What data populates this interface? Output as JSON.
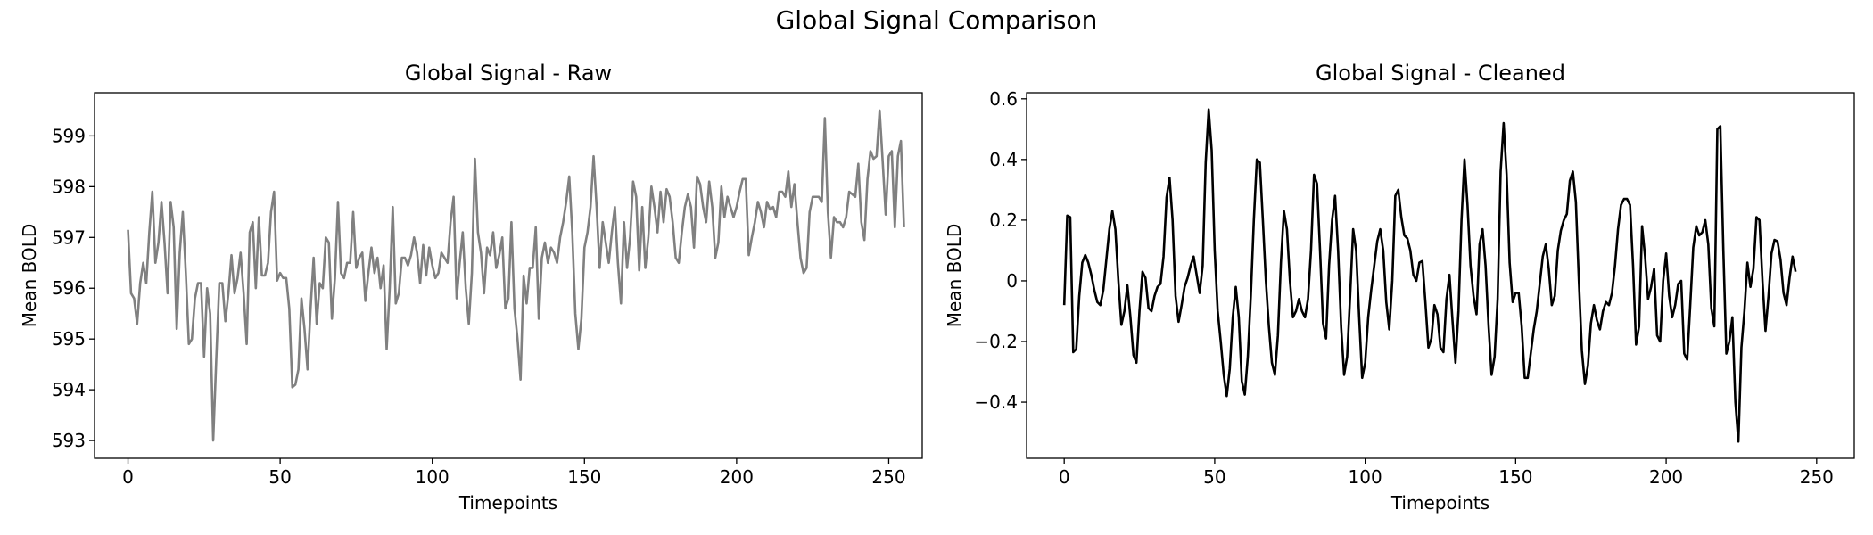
{
  "figure": {
    "title": "Global Signal Comparison"
  },
  "chart_data": [
    {
      "type": "line",
      "title": "Global Signal - Raw",
      "xlabel": "Timepoints",
      "ylabel": "Mean BOLD",
      "xlim": [
        -11,
        261
      ],
      "ylim": [
        592.65,
        599.85
      ],
      "xticks": [
        0,
        50,
        100,
        150,
        200,
        250
      ],
      "yticks": [
        593,
        594,
        595,
        596,
        597,
        598,
        599
      ],
      "grid": false,
      "color": "#808080",
      "series": [
        {
          "x_start": 0,
          "values": [
            597.15,
            595.9,
            595.8,
            595.3,
            596.1,
            596.5,
            596.1,
            597.1,
            597.9,
            596.5,
            596.9,
            597.7,
            596.9,
            595.9,
            597.7,
            597.2,
            595.2,
            596.7,
            597.5,
            596.3,
            594.9,
            595.0,
            595.8,
            596.1,
            596.1,
            594.65,
            596.0,
            595.5,
            593.0,
            594.6,
            596.1,
            596.1,
            595.35,
            595.9,
            596.65,
            595.9,
            596.2,
            596.7,
            595.9,
            594.9,
            597.1,
            597.3,
            596.0,
            597.4,
            596.25,
            596.25,
            596.5,
            597.5,
            597.9,
            596.15,
            596.3,
            596.2,
            596.2,
            595.6,
            594.05,
            594.1,
            594.4,
            595.8,
            595.2,
            594.4,
            595.6,
            596.6,
            595.3,
            596.1,
            596.0,
            597.0,
            596.9,
            595.4,
            596.2,
            597.7,
            596.3,
            596.2,
            596.5,
            596.5,
            597.5,
            596.4,
            596.6,
            596.7,
            595.75,
            596.3,
            596.8,
            596.3,
            596.6,
            596.0,
            596.45,
            594.8,
            596.0,
            597.6,
            595.7,
            595.9,
            596.6,
            596.6,
            596.45,
            596.65,
            597.0,
            596.7,
            596.1,
            596.85,
            596.25,
            596.8,
            596.45,
            596.2,
            596.3,
            596.7,
            596.6,
            596.5,
            597.3,
            597.8,
            595.8,
            596.5,
            597.1,
            596.0,
            595.3,
            596.3,
            598.55,
            597.1,
            596.7,
            595.9,
            596.8,
            596.65,
            597.1,
            596.4,
            596.65,
            597.0,
            595.6,
            595.8,
            597.3,
            595.6,
            595.0,
            594.2,
            596.25,
            595.7,
            596.4,
            596.4,
            597.2,
            595.4,
            596.6,
            596.9,
            596.5,
            596.8,
            596.7,
            596.5,
            597.0,
            597.3,
            597.7,
            598.2,
            597.1,
            595.5,
            594.8,
            595.4,
            596.8,
            597.1,
            597.6,
            598.6,
            597.6,
            596.4,
            597.3,
            596.9,
            596.5,
            597.1,
            597.6,
            596.5,
            595.7,
            597.3,
            596.4,
            597.0,
            598.1,
            597.8,
            596.35,
            597.6,
            596.4,
            597.0,
            598.0,
            597.6,
            597.1,
            597.9,
            597.3,
            597.95,
            597.8,
            597.3,
            596.6,
            596.5,
            597.1,
            597.6,
            597.85,
            597.6,
            596.8,
            598.2,
            598.05,
            597.6,
            597.3,
            598.1,
            597.6,
            596.6,
            596.9,
            598.0,
            597.4,
            597.8,
            597.6,
            597.4,
            597.6,
            597.9,
            598.15,
            598.15,
            596.65,
            597.0,
            597.3,
            597.7,
            597.5,
            597.2,
            597.7,
            597.55,
            597.6,
            597.4,
            597.9,
            597.9,
            597.8,
            598.3,
            597.6,
            598.05,
            597.3,
            596.6,
            596.3,
            596.4,
            597.5,
            597.8,
            597.8,
            597.8,
            597.7,
            599.35,
            597.5,
            596.6,
            597.4,
            597.3,
            597.3,
            597.2,
            597.4,
            597.9,
            597.85,
            597.8,
            598.45,
            597.3,
            596.95,
            598.15,
            598.7,
            598.55,
            598.6,
            599.5,
            598.5,
            597.45,
            598.6,
            598.7,
            597.2,
            598.6,
            598.9,
            597.2
          ]
        }
      ]
    },
    {
      "type": "line",
      "title": "Global Signal - Cleaned",
      "xlabel": "Timepoints",
      "ylabel": "Mean BOLD",
      "xlim": [
        -12.5,
        262.5
      ],
      "ylim": [
        -0.585,
        0.62
      ],
      "xticks": [
        0,
        50,
        100,
        150,
        200,
        250
      ],
      "yticks": [
        -0.4,
        -0.2,
        0.0,
        0.2,
        0.4,
        0.6
      ],
      "grid": false,
      "color": "#000000",
      "series": [
        {
          "x_start": 0,
          "values": [
            -0.08,
            0.215,
            0.21,
            -0.235,
            -0.225,
            -0.05,
            0.06,
            0.085,
            0.06,
            0.02,
            -0.03,
            -0.07,
            -0.08,
            -0.03,
            0.07,
            0.17,
            0.23,
            0.17,
            0.0,
            -0.145,
            -0.1,
            -0.015,
            -0.12,
            -0.245,
            -0.27,
            -0.1,
            0.03,
            0.01,
            -0.09,
            -0.1,
            -0.05,
            -0.02,
            -0.01,
            0.08,
            0.275,
            0.34,
            0.2,
            -0.05,
            -0.135,
            -0.08,
            -0.02,
            0.01,
            0.05,
            0.08,
            0.02,
            -0.04,
            0.05,
            0.39,
            0.565,
            0.43,
            0.1,
            -0.1,
            -0.2,
            -0.31,
            -0.38,
            -0.29,
            -0.12,
            -0.02,
            -0.12,
            -0.33,
            -0.375,
            -0.25,
            -0.05,
            0.2,
            0.4,
            0.39,
            0.2,
            0.0,
            -0.15,
            -0.27,
            -0.31,
            -0.18,
            0.06,
            0.23,
            0.17,
            0.0,
            -0.12,
            -0.1,
            -0.06,
            -0.1,
            -0.12,
            -0.06,
            0.1,
            0.35,
            0.32,
            0.1,
            -0.14,
            -0.19,
            0.05,
            0.2,
            0.28,
            0.1,
            -0.15,
            -0.31,
            -0.25,
            -0.05,
            0.17,
            0.1,
            -0.12,
            -0.32,
            -0.27,
            -0.12,
            -0.03,
            0.05,
            0.13,
            0.17,
            0.1,
            -0.07,
            -0.16,
            0.0,
            0.28,
            0.3,
            0.21,
            0.15,
            0.14,
            0.1,
            0.02,
            0.0,
            0.06,
            0.065,
            -0.07,
            -0.22,
            -0.19,
            -0.08,
            -0.11,
            -0.22,
            -0.235,
            -0.06,
            0.02,
            -0.13,
            -0.27,
            -0.1,
            0.2,
            0.4,
            0.25,
            0.05,
            -0.05,
            -0.11,
            0.12,
            0.17,
            0.05,
            -0.15,
            -0.31,
            -0.25,
            -0.06,
            0.36,
            0.52,
            0.35,
            0.06,
            -0.07,
            -0.04,
            -0.04,
            -0.15,
            -0.32,
            -0.32,
            -0.24,
            -0.16,
            -0.1,
            -0.01,
            0.08,
            0.12,
            0.04,
            -0.08,
            -0.05,
            0.1,
            0.165,
            0.2,
            0.22,
            0.33,
            0.36,
            0.26,
            0.0,
            -0.23,
            -0.34,
            -0.28,
            -0.14,
            -0.08,
            -0.13,
            -0.16,
            -0.1,
            -0.07,
            -0.08,
            -0.04,
            0.05,
            0.17,
            0.25,
            0.27,
            0.27,
            0.25,
            0.05,
            -0.21,
            -0.15,
            0.18,
            0.08,
            -0.06,
            -0.02,
            0.04,
            -0.18,
            -0.2,
            0.0,
            0.09,
            -0.05,
            -0.12,
            -0.08,
            -0.01,
            0.0,
            -0.24,
            -0.26,
            -0.08,
            0.11,
            0.18,
            0.15,
            0.16,
            0.2,
            0.12,
            -0.09,
            -0.15,
            0.5,
            0.51,
            0.1,
            -0.24,
            -0.2,
            -0.12,
            -0.4,
            -0.53,
            -0.22,
            -0.1,
            0.06,
            -0.02,
            0.04,
            0.21,
            0.2,
            0.0,
            -0.165,
            -0.05,
            0.09,
            0.135,
            0.13,
            0.07,
            -0.04,
            -0.08,
            0.01,
            0.08,
            0.03
          ]
        }
      ]
    }
  ]
}
